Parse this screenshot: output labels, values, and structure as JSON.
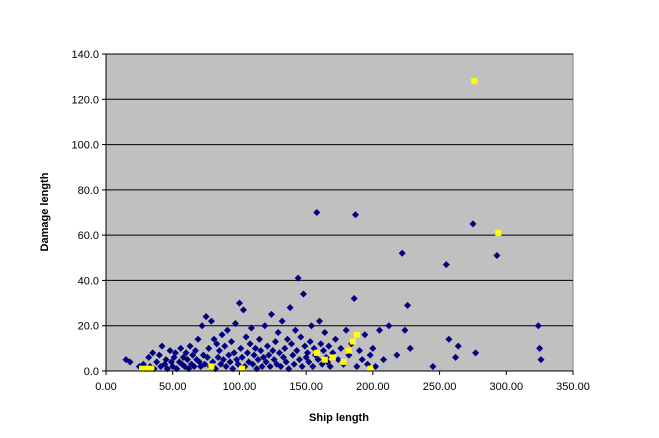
{
  "chart_data": {
    "type": "scatter",
    "title": "",
    "xlabel": "Ship length",
    "ylabel": "Damage length",
    "xlim": [
      0,
      350
    ],
    "ylim": [
      0,
      140
    ],
    "x_ticks": [
      "0.00",
      "50.00",
      "100.00",
      "150.00",
      "200.00",
      "250.00",
      "300.00",
      "350.00"
    ],
    "y_ticks": [
      "0.0",
      "20.0",
      "40.0",
      "60.0",
      "80.0",
      "100.0",
      "120.0",
      "140.0"
    ],
    "grid": "horizontal",
    "plot_background": "#c0c0c0",
    "legend": "none",
    "series": [
      {
        "color": "#000080",
        "marker": "diamond",
        "points": [
          [
            15,
            5
          ],
          [
            18,
            4
          ],
          [
            25,
            2
          ],
          [
            28,
            3
          ],
          [
            30,
            1
          ],
          [
            32,
            6
          ],
          [
            33,
            2
          ],
          [
            35,
            8
          ],
          [
            36,
            1
          ],
          [
            38,
            4
          ],
          [
            40,
            7
          ],
          [
            41,
            2
          ],
          [
            42,
            11
          ],
          [
            44,
            3
          ],
          [
            45,
            5
          ],
          [
            46,
            1
          ],
          [
            48,
            9
          ],
          [
            49,
            4
          ],
          [
            50,
            2
          ],
          [
            51,
            6
          ],
          [
            52,
            8
          ],
          [
            53,
            1
          ],
          [
            55,
            4
          ],
          [
            56,
            10
          ],
          [
            57,
            3
          ],
          [
            58,
            6
          ],
          [
            59,
            2
          ],
          [
            60,
            8
          ],
          [
            61,
            5
          ],
          [
            62,
            1
          ],
          [
            63,
            11
          ],
          [
            64,
            3
          ],
          [
            65,
            7
          ],
          [
            66,
            2
          ],
          [
            67,
            9
          ],
          [
            68,
            5
          ],
          [
            69,
            14
          ],
          [
            70,
            4
          ],
          [
            71,
            2
          ],
          [
            72,
            20
          ],
          [
            73,
            7
          ],
          [
            74,
            3
          ],
          [
            75,
            24
          ],
          [
            76,
            6
          ],
          [
            77,
            10
          ],
          [
            78,
            2
          ],
          [
            79,
            22
          ],
          [
            80,
            4
          ],
          [
            81,
            14
          ],
          [
            82,
            1
          ],
          [
            83,
            12
          ],
          [
            84,
            6
          ],
          [
            85,
            9
          ],
          [
            86,
            3
          ],
          [
            87,
            16
          ],
          [
            88,
            5
          ],
          [
            89,
            11
          ],
          [
            90,
            2
          ],
          [
            91,
            18
          ],
          [
            92,
            7
          ],
          [
            93,
            4
          ],
          [
            94,
            13
          ],
          [
            95,
            1
          ],
          [
            96,
            8
          ],
          [
            97,
            21
          ],
          [
            98,
            5
          ],
          [
            99,
            3
          ],
          [
            100,
            30
          ],
          [
            101,
            10
          ],
          [
            102,
            6
          ],
          [
            103,
            27
          ],
          [
            104,
            2
          ],
          [
            105,
            15
          ],
          [
            106,
            8
          ],
          [
            107,
            4
          ],
          [
            108,
            12
          ],
          [
            109,
            19
          ],
          [
            110,
            3
          ],
          [
            111,
            7
          ],
          [
            112,
            10
          ],
          [
            113,
            1
          ],
          [
            114,
            5
          ],
          [
            115,
            14
          ],
          [
            116,
            9
          ],
          [
            117,
            2
          ],
          [
            118,
            6
          ],
          [
            119,
            20
          ],
          [
            120,
            4
          ],
          [
            121,
            11
          ],
          [
            122,
            7
          ],
          [
            123,
            2
          ],
          [
            124,
            25
          ],
          [
            125,
            9
          ],
          [
            126,
            5
          ],
          [
            127,
            13
          ],
          [
            128,
            3
          ],
          [
            129,
            17
          ],
          [
            130,
            8
          ],
          [
            131,
            2
          ],
          [
            132,
            22
          ],
          [
            133,
            6
          ],
          [
            134,
            10
          ],
          [
            135,
            4
          ],
          [
            136,
            14
          ],
          [
            137,
            1
          ],
          [
            138,
            28
          ],
          [
            139,
            12
          ],
          [
            140,
            7
          ],
          [
            141,
            3
          ],
          [
            142,
            18
          ],
          [
            143,
            9
          ],
          [
            144,
            41
          ],
          [
            145,
            5
          ],
          [
            146,
            15
          ],
          [
            147,
            2
          ],
          [
            148,
            34
          ],
          [
            149,
            11
          ],
          [
            150,
            6
          ],
          [
            151,
            8
          ],
          [
            152,
            4
          ],
          [
            153,
            13
          ],
          [
            154,
            20
          ],
          [
            155,
            2
          ],
          [
            156,
            10
          ],
          [
            157,
            7
          ],
          [
            158,
            70
          ],
          [
            159,
            5
          ],
          [
            160,
            22
          ],
          [
            161,
            12
          ],
          [
            162,
            3
          ],
          [
            163,
            9
          ],
          [
            164,
            17
          ],
          [
            165,
            6
          ],
          [
            166,
            4
          ],
          [
            167,
            11
          ],
          [
            168,
            2
          ],
          [
            170,
            8
          ],
          [
            172,
            14
          ],
          [
            174,
            5
          ],
          [
            176,
            10
          ],
          [
            178,
            3
          ],
          [
            180,
            18
          ],
          [
            182,
            7
          ],
          [
            184,
            12
          ],
          [
            186,
            32
          ],
          [
            187,
            69
          ],
          [
            188,
            2
          ],
          [
            190,
            9
          ],
          [
            192,
            5
          ],
          [
            194,
            16
          ],
          [
            196,
            3
          ],
          [
            198,
            7
          ],
          [
            200,
            10
          ],
          [
            202,
            2
          ],
          [
            205,
            18
          ],
          [
            208,
            5
          ],
          [
            212,
            20
          ],
          [
            218,
            7
          ],
          [
            222,
            52
          ],
          [
            224,
            18
          ],
          [
            226,
            29
          ],
          [
            228,
            10
          ],
          [
            245,
            2
          ],
          [
            255,
            47
          ],
          [
            257,
            14
          ],
          [
            262,
            6
          ],
          [
            264,
            11
          ],
          [
            275,
            65
          ],
          [
            277,
            8
          ],
          [
            293,
            51
          ],
          [
            324,
            20
          ],
          [
            325,
            10
          ],
          [
            326,
            5
          ]
        ]
      },
      {
        "color": "#ffff00",
        "marker": "square",
        "points": [
          [
            27,
            1
          ],
          [
            31,
            1
          ],
          [
            34,
            1
          ],
          [
            79,
            2
          ],
          [
            102,
            1
          ],
          [
            158,
            8
          ],
          [
            164,
            5
          ],
          [
            170,
            6
          ],
          [
            178,
            4
          ],
          [
            182,
            9
          ],
          [
            185,
            13
          ],
          [
            188,
            16
          ],
          [
            198,
            1
          ],
          [
            276,
            128
          ],
          [
            294,
            61
          ]
        ]
      }
    ]
  }
}
